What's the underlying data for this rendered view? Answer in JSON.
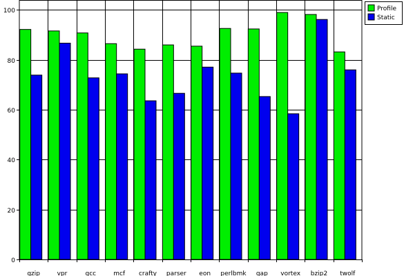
{
  "chart_data": {
    "type": "bar",
    "title": "",
    "xlabel": "",
    "ylabel": "",
    "categories": [
      "gzip",
      "vpr",
      "gcc",
      "mcf",
      "crafty",
      "parser",
      "eon",
      "perlbmk",
      "gap",
      "vortex",
      "bzip2",
      "twolf"
    ],
    "series": [
      {
        "name": "Profile",
        "values": [
          92.2,
          91.6,
          90.8,
          86.5,
          84.3,
          86.0,
          85.5,
          92.6,
          92.4,
          99.0,
          98.2,
          83.2
        ]
      },
      {
        "name": "Static",
        "values": [
          73.9,
          86.7,
          72.8,
          74.4,
          63.6,
          66.6,
          77.1,
          74.7,
          65.3,
          58.4,
          96.2,
          76.0
        ]
      }
    ],
    "ylim": [
      0,
      104
    ],
    "yticks": [
      0,
      20,
      40,
      60,
      80,
      100
    ],
    "grid": true,
    "legend_position": "top-right",
    "colors": {
      "Profile": "#00ee00",
      "Static": "#0000ee"
    }
  }
}
